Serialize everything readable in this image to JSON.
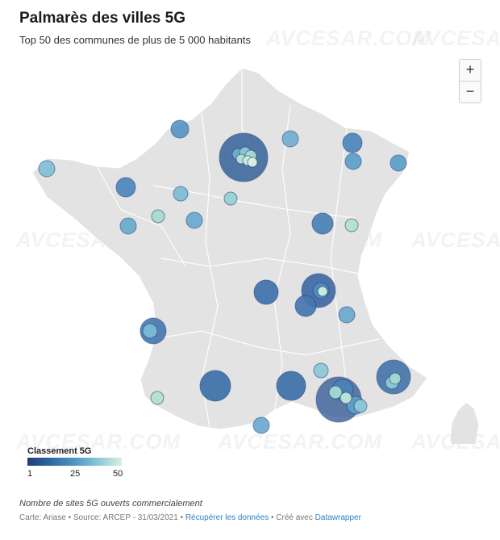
{
  "header": {
    "title": "Palmarès des villes 5G",
    "subtitle": "Top 50 des communes de plus de 5 000 habitants"
  },
  "watermark_text": "AVCESAR.COM",
  "zoom": {
    "in_label": "+",
    "out_label": "−"
  },
  "legend": {
    "title": "Classement 5G",
    "ticks": [
      "1",
      "25",
      "50"
    ],
    "colors": [
      "#1f3d7a",
      "#2e6aa6",
      "#4c96c2",
      "#8cc8d8",
      "#d8f0e2"
    ]
  },
  "footer": {
    "note": "Nombre de sites 5G ouverts commercialement",
    "credits_prefix": "Carte: Ariase • Source: ARCEP - 31/03/2021 •",
    "data_link": "Récupérer les données",
    "credits_mid": "• Créé avec",
    "tool_link": "Datawrapper"
  },
  "colors": {
    "land": "#e3e3e3",
    "border": "#ffffff"
  }
}
